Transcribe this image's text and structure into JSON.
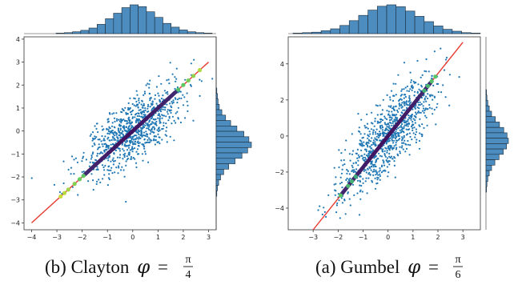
{
  "chart_data": [
    {
      "type": "scatter",
      "caption_text": "(b) Clayton",
      "caption_symbol": "φ",
      "caption_equals": "=",
      "caption_num": "π",
      "caption_den": "4",
      "xlim": [
        -4.3,
        3.3
      ],
      "ylim": [
        -4.3,
        4.1
      ],
      "xticks": [
        -4,
        -3,
        -2,
        -1,
        0,
        1,
        2,
        3
      ],
      "yticks": [
        -4,
        -3,
        -2,
        -1,
        0,
        1,
        2,
        3,
        4
      ],
      "grid": false,
      "scatter_color": "#1f77b4",
      "line_color": "#e8392f",
      "diagonal_line": {
        "x": [
          -4,
          3
        ],
        "y": [
          -4,
          3
        ]
      },
      "diagonal_points": [
        -2.85,
        -2.7,
        -2.55,
        -2.3,
        -2.1,
        -1.95,
        1.8,
        2.0,
        2.2,
        2.4,
        2.65
      ],
      "top_hist_counts": [
        1,
        2,
        4,
        7,
        12,
        20,
        32,
        44,
        56,
        62,
        58,
        47,
        35,
        22,
        14,
        8,
        4,
        2,
        1
      ],
      "right_hist_counts": [
        1,
        2,
        3,
        5,
        9,
        15,
        23,
        33,
        44,
        52,
        56,
        50,
        41,
        30,
        20,
        12,
        7,
        4,
        2,
        1
      ]
    },
    {
      "type": "scatter",
      "caption_text": "(a) Gumbel",
      "caption_symbol": "φ",
      "caption_equals": "=",
      "caption_num": "π",
      "caption_den": "6",
      "xlim": [
        -4.0,
        3.7
      ],
      "ylim": [
        -5.2,
        5.5
      ],
      "xticks": [
        -3,
        -2,
        -1,
        0,
        1,
        2,
        3
      ],
      "yticks": [
        -4,
        -2,
        0,
        2,
        4
      ],
      "grid": false,
      "scatter_color": "#1f77b4",
      "line_color": "#e8392f",
      "diagonal_line": {
        "x": [
          -3,
          3
        ],
        "y": [
          -5.2,
          5.2
        ]
      },
      "diagonal_points": [
        -1.9,
        -1.6,
        -1.45,
        -1.3,
        1.45,
        1.6,
        1.75,
        1.9
      ],
      "top_hist_counts": [
        1,
        2,
        3,
        6,
        10,
        17,
        27,
        38,
        49,
        57,
        60,
        56,
        47,
        36,
        25,
        16,
        9,
        5,
        2,
        1
      ],
      "right_hist_counts": [
        1,
        2,
        4,
        7,
        12,
        20,
        29,
        38,
        45,
        48,
        44,
        37,
        28,
        19,
        12,
        7,
        4,
        2,
        1
      ]
    }
  ]
}
